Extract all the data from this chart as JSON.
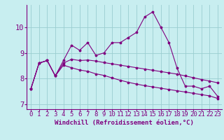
{
  "title": "",
  "xlabel": "Windchill (Refroidissement éolien,°C)",
  "ylabel": "",
  "bg_color": "#c8eef0",
  "line_color": "#800080",
  "x": [
    0,
    1,
    2,
    3,
    4,
    5,
    6,
    7,
    8,
    9,
    10,
    11,
    12,
    13,
    14,
    15,
    16,
    17,
    18,
    19,
    20,
    21,
    22,
    23
  ],
  "line1": [
    7.6,
    8.6,
    8.7,
    8.1,
    8.7,
    9.3,
    9.1,
    9.4,
    8.9,
    9.0,
    9.4,
    9.4,
    9.6,
    9.8,
    10.4,
    10.6,
    10.0,
    9.4,
    8.4,
    7.7,
    7.7,
    7.6,
    7.7,
    7.3
  ],
  "line2": [
    7.6,
    8.6,
    8.7,
    8.1,
    8.6,
    8.75,
    8.7,
    8.72,
    8.68,
    8.62,
    8.57,
    8.52,
    8.47,
    8.42,
    8.37,
    8.32,
    8.27,
    8.22,
    8.17,
    8.1,
    8.03,
    7.96,
    7.9,
    7.83
  ],
  "line3": [
    7.6,
    8.6,
    8.7,
    8.1,
    8.52,
    8.42,
    8.33,
    8.28,
    8.18,
    8.12,
    8.02,
    7.93,
    7.85,
    7.78,
    7.72,
    7.67,
    7.62,
    7.57,
    7.52,
    7.47,
    7.42,
    7.37,
    7.32,
    7.22
  ],
  "xlim": [
    -0.5,
    23.5
  ],
  "ylim": [
    6.8,
    10.9
  ],
  "yticks": [
    7,
    8,
    9,
    10
  ],
  "xticks": [
    0,
    1,
    2,
    3,
    4,
    5,
    6,
    7,
    8,
    9,
    10,
    11,
    12,
    13,
    14,
    15,
    16,
    17,
    18,
    19,
    20,
    21,
    22,
    23
  ],
  "grid_color": "#9acdd0",
  "fontsize_label": 6.5,
  "fontsize_tick": 6.5
}
